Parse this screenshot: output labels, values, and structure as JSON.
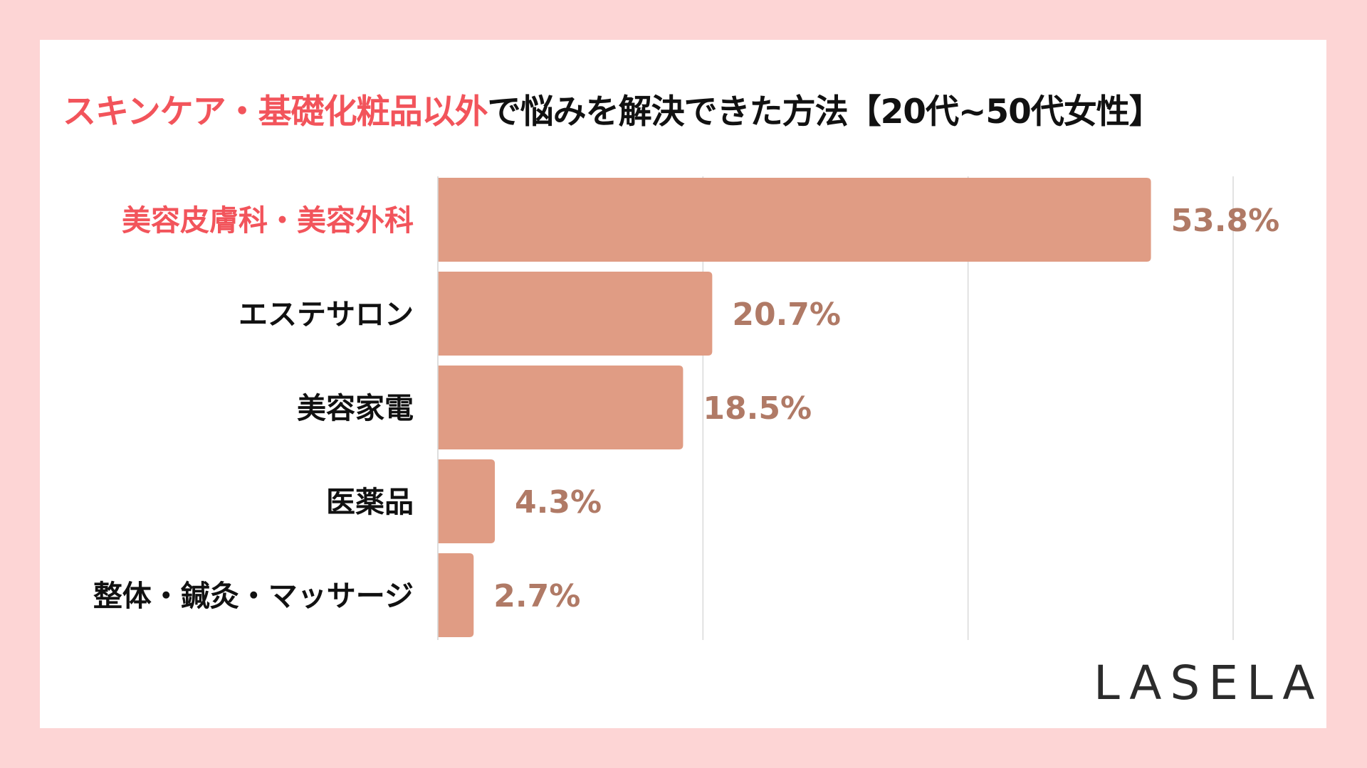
{
  "title": {
    "highlight": "スキンケア・基礎化粧品以外",
    "rest": "で悩みを解決できた方法【20代~50代女性】"
  },
  "logo": "LASELA",
  "colors": {
    "background": "#fdd5d5",
    "bar": "#e09c84",
    "value_label": "#b07a66",
    "highlight": "#f2545b",
    "grid": "#d9d9d9"
  },
  "chart_data": {
    "type": "bar",
    "orientation": "horizontal",
    "title": "スキンケア・基礎化粧品以外で悩みを解決できた方法【20代~50代女性】",
    "categories": [
      "美容皮膚科・美容外科",
      "エステサロン",
      "美容家電",
      "医薬品",
      "整体・鍼灸・マッサージ"
    ],
    "values": [
      53.8,
      20.7,
      18.5,
      4.3,
      2.7
    ],
    "labels": [
      "53.8%",
      "20.7%",
      "18.5%",
      "4.3%",
      "2.7%"
    ],
    "highlighted_category": "美容皮膚科・美容外科",
    "unit": "%",
    "xlim": [
      0,
      60
    ],
    "grid": true,
    "grid_step": 20,
    "axis_tick_labels_shown": false,
    "legend": "none"
  }
}
